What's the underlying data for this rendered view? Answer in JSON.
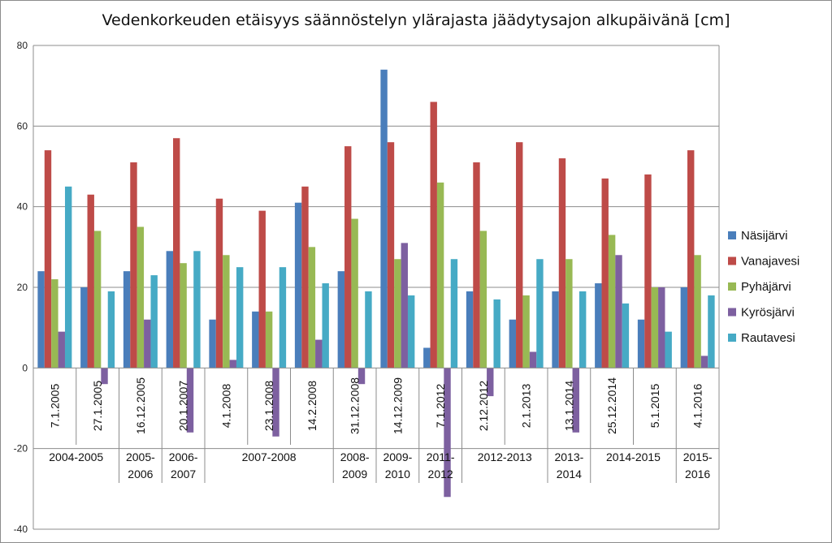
{
  "chart_data": {
    "type": "bar",
    "title": "Vedenkorkeuden  etäisyys säännöstelyn ylärajasta jäädytysajon alkupäivänä [cm]",
    "xlabel": "",
    "ylabel": "",
    "ylim": [
      -40,
      80
    ],
    "yticks": [
      -40,
      -20,
      0,
      20,
      40,
      60,
      80
    ],
    "grid": true,
    "legend_position": "right",
    "categories": [
      "7.1.2005",
      "27.1.2005",
      "16.12.2005",
      "20.1.2007",
      "4.1.2008",
      "23.1.2008",
      "14.2.2008",
      "31.12.2008",
      "14.12.2009",
      "7.1.2012",
      "2.12.2012",
      "2.1.2013",
      "13.1.2014",
      "25.12.2014",
      "5.1.2015",
      "4.1.2016"
    ],
    "groups": [
      {
        "label_lines": [
          "2004-2005"
        ],
        "span": 2
      },
      {
        "label_lines": [
          "2005-",
          "2006"
        ],
        "span": 1
      },
      {
        "label_lines": [
          "2006-",
          "2007"
        ],
        "span": 1
      },
      {
        "label_lines": [
          "2007-2008"
        ],
        "span": 3
      },
      {
        "label_lines": [
          "2008-",
          "2009"
        ],
        "span": 1
      },
      {
        "label_lines": [
          "2009-",
          "2010"
        ],
        "span": 1
      },
      {
        "label_lines": [
          "2011-",
          "2012"
        ],
        "span": 1
      },
      {
        "label_lines": [
          "2012-2013"
        ],
        "span": 2
      },
      {
        "label_lines": [
          "2013-",
          "2014"
        ],
        "span": 1
      },
      {
        "label_lines": [
          "2014-2015"
        ],
        "span": 2
      },
      {
        "label_lines": [
          "2015-",
          "2016"
        ],
        "span": 1
      }
    ],
    "series": [
      {
        "name": "Näsijärvi",
        "color": "#4a7ebb",
        "values": [
          24,
          20,
          24,
          29,
          12,
          14,
          41,
          24,
          74,
          5,
          19,
          12,
          19,
          21,
          12,
          20
        ]
      },
      {
        "name": "Vanajavesi",
        "color": "#be4b48",
        "values": [
          54,
          43,
          51,
          57,
          42,
          39,
          45,
          55,
          56,
          66,
          51,
          56,
          52,
          47,
          48,
          54
        ]
      },
      {
        "name": "Pyhäjärvi",
        "color": "#98b954",
        "values": [
          22,
          34,
          35,
          26,
          28,
          14,
          30,
          37,
          27,
          46,
          34,
          18,
          27,
          33,
          20,
          28
        ]
      },
      {
        "name": "Kyrösjärvi",
        "color": "#7d60a0",
        "values": [
          9,
          -4,
          12,
          -16,
          2,
          -17,
          7,
          -4,
          31,
          -32,
          -7,
          4,
          -16,
          28,
          20,
          3
        ]
      },
      {
        "name": "Rautavesi",
        "color": "#46aac5",
        "values": [
          45,
          19,
          23,
          29,
          25,
          25,
          21,
          19,
          18,
          27,
          17,
          27,
          19,
          16,
          9,
          18
        ]
      }
    ]
  }
}
